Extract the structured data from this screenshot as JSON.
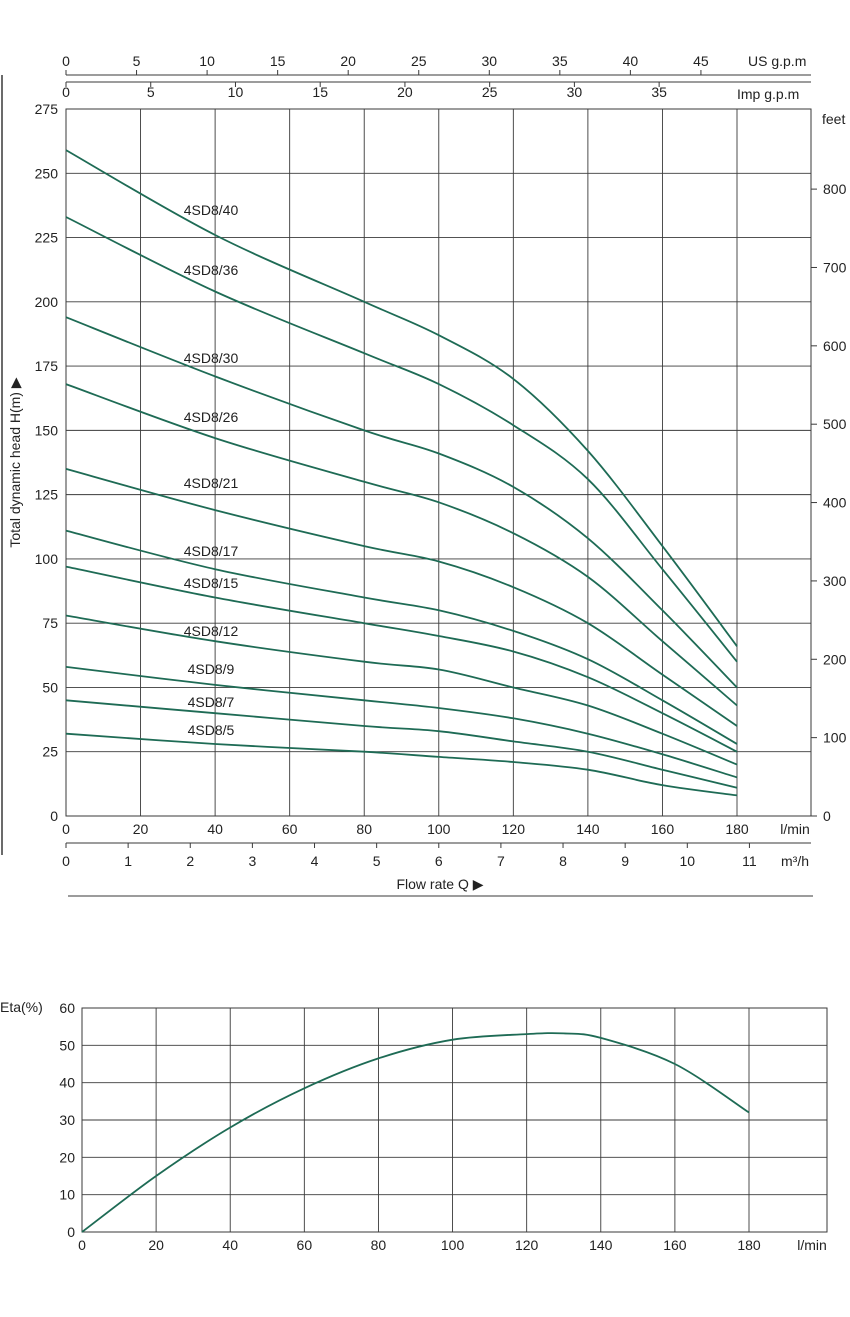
{
  "colors": {
    "curve": "#1e6b55",
    "grid": "#3a3a3a",
    "text": "#222222"
  },
  "chart_data": [
    {
      "type": "line",
      "ylabel": "Total dynamic head H(m) ▶",
      "xlabel": "Flow  rate Q ▶",
      "x_unit": "l/min",
      "xlim": [
        0,
        200
      ],
      "ylim": [
        0,
        275
      ],
      "x_ticks": [
        0,
        20,
        40,
        60,
        80,
        100,
        120,
        140,
        160,
        180
      ],
      "y_ticks": [
        0,
        25,
        50,
        75,
        100,
        125,
        150,
        175,
        200,
        225,
        250,
        275
      ],
      "grid": true,
      "secondary_axes": {
        "us_gpm": {
          "label": "US g.p.m",
          "ticks": [
            0,
            5,
            10,
            15,
            20,
            25,
            30,
            35,
            40,
            45
          ]
        },
        "imp_gpm": {
          "label": "Imp g.p.m",
          "ticks": [
            0,
            5,
            10,
            15,
            20,
            25,
            30,
            35
          ]
        },
        "m3h": {
          "label": "m³/h",
          "ticks": [
            0,
            1,
            2,
            3,
            4,
            5,
            6,
            7,
            8,
            9,
            10,
            11
          ]
        },
        "feet": {
          "label": "feet",
          "ticks": [
            0,
            100,
            200,
            300,
            400,
            500,
            600,
            700,
            800
          ]
        }
      },
      "series": [
        {
          "name": "4SD8/40",
          "x": [
            0,
            40,
            80,
            100,
            120,
            140,
            160,
            180
          ],
          "y": [
            259,
            226,
            200,
            187,
            170,
            142,
            105,
            66
          ]
        },
        {
          "name": "4SD8/36",
          "x": [
            0,
            40,
            80,
            100,
            120,
            140,
            160,
            180
          ],
          "y": [
            233,
            204,
            180,
            168,
            152,
            131,
            96,
            60
          ]
        },
        {
          "name": "4SD8/30",
          "x": [
            0,
            40,
            80,
            100,
            120,
            140,
            160,
            180
          ],
          "y": [
            194,
            171,
            150,
            141,
            128,
            108,
            80,
            50
          ]
        },
        {
          "name": "4SD8/26",
          "x": [
            0,
            40,
            80,
            100,
            120,
            140,
            160,
            180
          ],
          "y": [
            168,
            147,
            130,
            122,
            110,
            93,
            68,
            43
          ]
        },
        {
          "name": "4SD8/21",
          "x": [
            0,
            40,
            80,
            100,
            120,
            140,
            160,
            180
          ],
          "y": [
            135,
            119,
            105,
            99,
            89,
            75,
            55,
            35
          ]
        },
        {
          "name": "4SD8/17",
          "x": [
            0,
            40,
            80,
            100,
            120,
            140,
            160,
            180
          ],
          "y": [
            111,
            96,
            85,
            80,
            72,
            61,
            45,
            28
          ]
        },
        {
          "name": "4SD8/15",
          "x": [
            0,
            40,
            80,
            100,
            120,
            140,
            160,
            180
          ],
          "y": [
            97,
            85,
            75,
            70,
            64,
            54,
            40,
            25
          ]
        },
        {
          "name": "4SD8/12",
          "x": [
            0,
            40,
            80,
            100,
            120,
            140,
            160,
            180
          ],
          "y": [
            78,
            68,
            60,
            57,
            50,
            43,
            32,
            20
          ]
        },
        {
          "name": "4SD8/9",
          "x": [
            0,
            40,
            80,
            100,
            120,
            140,
            160,
            180
          ],
          "y": [
            58,
            51,
            45,
            42,
            38,
            32,
            24,
            15
          ]
        },
        {
          "name": "4SD8/7",
          "x": [
            0,
            40,
            80,
            100,
            120,
            140,
            160,
            180
          ],
          "y": [
            45,
            40,
            35,
            33,
            29,
            25,
            18,
            11
          ]
        },
        {
          "name": "4SD8/5",
          "x": [
            0,
            40,
            80,
            100,
            120,
            140,
            160,
            180
          ],
          "y": [
            32,
            28,
            25,
            23,
            21,
            18,
            12,
            8
          ]
        }
      ]
    },
    {
      "type": "line",
      "ylabel": "Eta(%)",
      "x_unit": "l/min",
      "xlim": [
        0,
        200
      ],
      "ylim": [
        0,
        60
      ],
      "x_ticks": [
        0,
        20,
        40,
        60,
        80,
        100,
        120,
        140,
        160,
        180
      ],
      "y_ticks": [
        0,
        10,
        20,
        30,
        40,
        50,
        60
      ],
      "grid": true,
      "series": [
        {
          "x": [
            0,
            20,
            40,
            60,
            80,
            100,
            120,
            130,
            140,
            160,
            180
          ],
          "y": [
            0,
            15,
            28,
            38.5,
            46.5,
            51.5,
            53,
            53.2,
            52,
            45,
            32
          ]
        }
      ]
    }
  ]
}
